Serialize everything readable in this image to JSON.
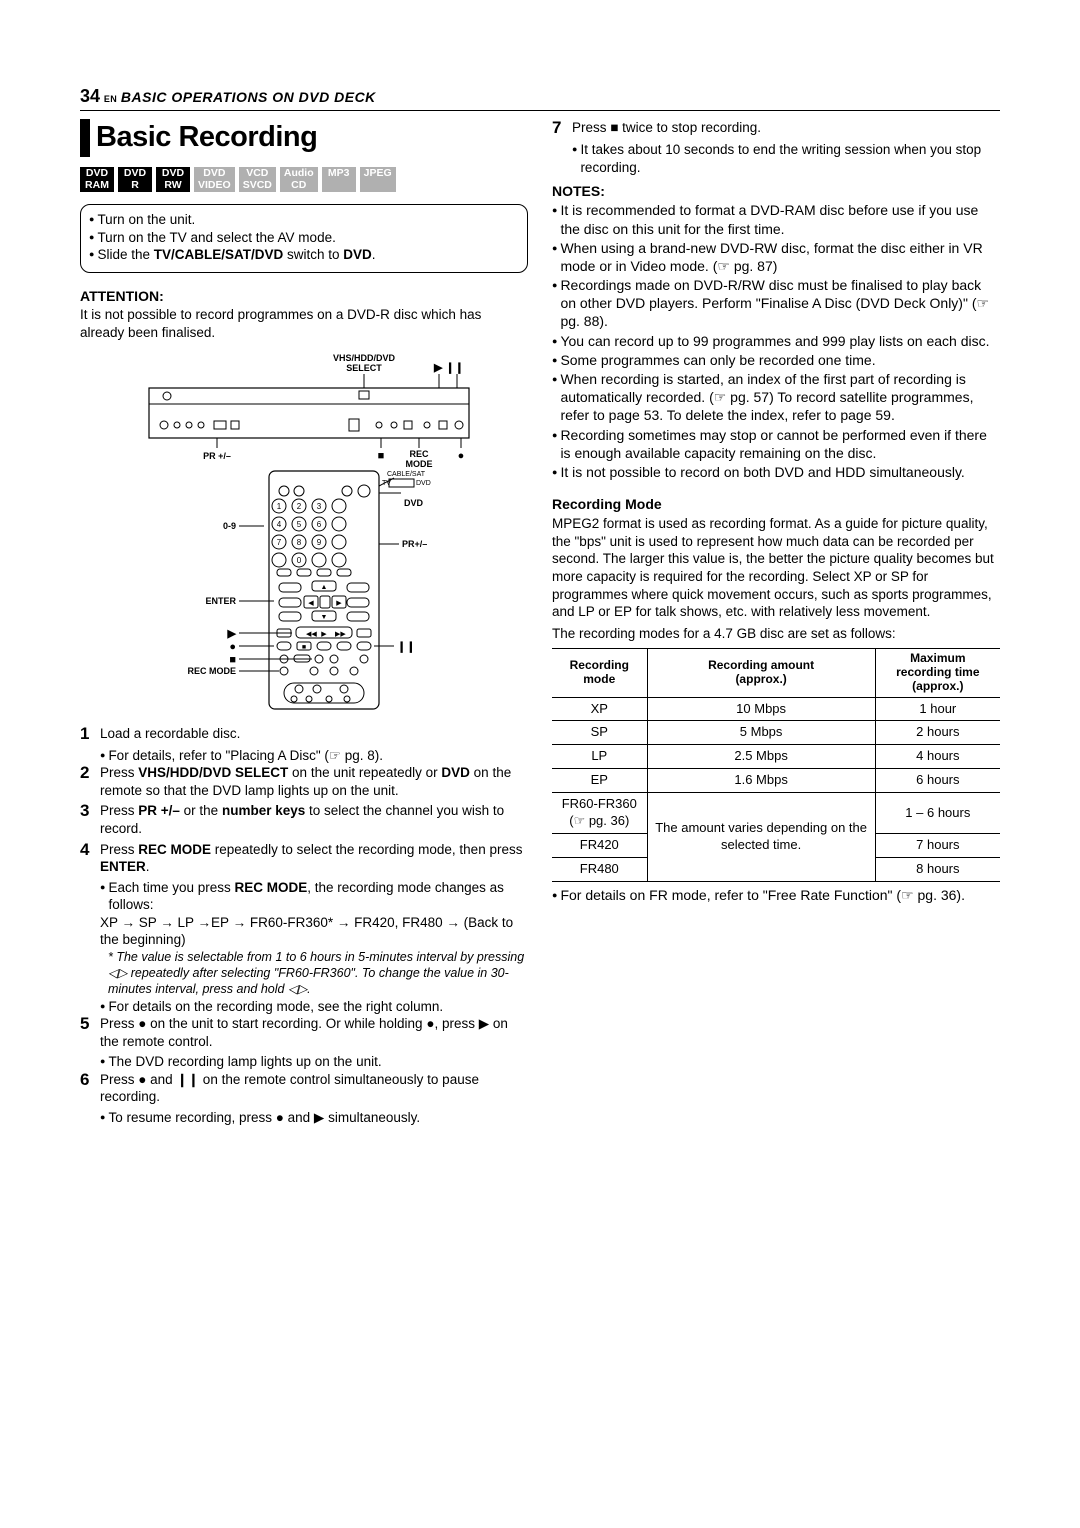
{
  "header": {
    "page_num": "34",
    "en_label": "EN",
    "section_title": "BASIC OPERATIONS ON DVD DECK"
  },
  "title": "Basic Recording",
  "badges": [
    {
      "line1": "DVD",
      "line2": "RAM",
      "cls": "dark"
    },
    {
      "line1": "DVD",
      "line2": "R",
      "cls": "dark"
    },
    {
      "line1": "DVD",
      "line2": "RW",
      "cls": "dark"
    },
    {
      "line1": "DVD",
      "line2": "VIDEO",
      "cls": "light"
    },
    {
      "line1": "VCD",
      "line2": "SVCD",
      "cls": "light"
    },
    {
      "line1": "Audio",
      "line2": "CD",
      "cls": "light"
    },
    {
      "line1": "MP3",
      "line2": "",
      "cls": "light"
    },
    {
      "line1": "JPEG",
      "line2": "",
      "cls": "light"
    }
  ],
  "setup": [
    "Turn on the unit.",
    "Turn on the TV and select the AV mode.",
    "Slide the <b>TV/CABLE/SAT/DVD</b> switch to <b>DVD</b>."
  ],
  "attention": {
    "heading": "ATTENTION",
    "text": "It is not possible to record programmes on a DVD-R disc which has already been finalised."
  },
  "diagram_labels": {
    "top": "VHS/HDD/DVD SELECT",
    "pr1": "PR +/–",
    "rec_mode_top": "REC MODE",
    "dvd": "DVD",
    "zero_nine": "0-9",
    "pr2": "PR+/–",
    "enter": "ENTER",
    "rec_mode": "REC MODE",
    "play": "▶",
    "pause": "❙❙",
    "stop": "■",
    "rec_dot": "●"
  },
  "steps": [
    {
      "n": "1",
      "body": "Load a recordable disc.",
      "subs": [
        "For details, refer to \"Placing A Disc\" (☞ pg. 8)."
      ]
    },
    {
      "n": "2",
      "body": "Press <b>VHS/HDD/DVD SELECT</b> on the unit repeatedly or <b>DVD</b> on the remote so that the DVD lamp lights up on the unit."
    },
    {
      "n": "3",
      "body": "Press <b>PR +/–</b> or the <b>number keys</b> to select the channel you wish to record."
    },
    {
      "n": "4",
      "body": "Press <b>REC MODE</b> repeatedly to select the recording mode, then press <b>ENTER</b>.",
      "subs": [
        "Each time you press <b>REC MODE</b>, the recording mode changes as follows:"
      ],
      "chain": "XP → SP → LP →EP → FR60-FR360* → FR420, FR480 → (Back to the beginning)",
      "note": "* The value is selectable from 1 to 6 hours in 5-minutes interval by pressing ◁▷ repeatedly after selecting \"FR60-FR360\". To change the value in 30-minutes interval, press and hold ◁▷.",
      "subs2": [
        "For details on the recording mode, see the right column."
      ]
    },
    {
      "n": "5",
      "body": "Press ● on the unit to start recording. Or while holding ●, press ▶ on the remote control.",
      "subs": [
        "The DVD recording lamp lights up on the unit."
      ]
    },
    {
      "n": "6",
      "body": "Press ● and ❙❙ on the remote control simultaneously to pause recording.",
      "subs": [
        "To resume recording, press ● and ▶ simultaneously."
      ]
    },
    {
      "n": "7",
      "body": "Press ■ twice to stop recording.",
      "subs": [
        "It takes about 10 seconds to end the writing session when you stop recording."
      ]
    }
  ],
  "notes_heading": "NOTES",
  "notes": [
    "It is recommended to format a DVD-RAM disc before use if you use the disc on this unit for the first time.",
    "When using a brand-new DVD-RW disc, format the disc either in VR mode or in Video mode. (☞ pg. 87)",
    "Recordings made on DVD-R/RW disc must be finalised to play back on other DVD players. Perform \"Finalise A Disc (DVD Deck Only)\" (☞ pg. 88).",
    "You can record up to 99 programmes and 999 play lists on each disc.",
    "Some programmes can only be recorded one time.",
    "When recording is started, an index of the first part of recording is automatically recorded. (☞ pg. 57) To record satellite programmes, refer to page 53. To delete the index, refer to page 59.",
    "Recording sometimes may stop or cannot be performed even if there is enough available capacity remaining on the disc.",
    "It is not possible to record on both DVD and HDD simultaneously."
  ],
  "rec_mode": {
    "heading": "Recording Mode",
    "para1": "MPEG2 format is used as recording format. As a guide for picture quality, the \"bps\" unit is used to represent how much data can be recorded per second. The larger this value is, the better the picture quality becomes but more capacity is required for the recording. Select XP or SP for programmes where quick movement occurs, such as sports programmes, and LP or EP for talk shows, etc. with relatively less movement.",
    "para2": "The recording modes for a 4.7 GB disc are set as follows:",
    "table": {
      "headers": [
        "Recording mode",
        "Recording amount (approx.)",
        "Maximum recording time (approx.)"
      ],
      "rows": [
        [
          "XP",
          "10 Mbps",
          "1 hour"
        ],
        [
          "SP",
          "5 Mbps",
          "2 hours"
        ],
        [
          "LP",
          "2.5 Mbps",
          "4 hours"
        ],
        [
          "EP",
          "1.6 Mbps",
          "6 hours"
        ]
      ],
      "fr_group": {
        "span_text": "The amount varies depending on the selected time.",
        "rows": [
          [
            "FR60-FR360 (☞ pg. 36)",
            "1 – 6 hours"
          ],
          [
            "FR420",
            "7 hours"
          ],
          [
            "FR480",
            "8 hours"
          ]
        ]
      }
    },
    "footer": "For details on FR mode, refer to \"Free Rate Function\" (☞ pg. 36)."
  }
}
